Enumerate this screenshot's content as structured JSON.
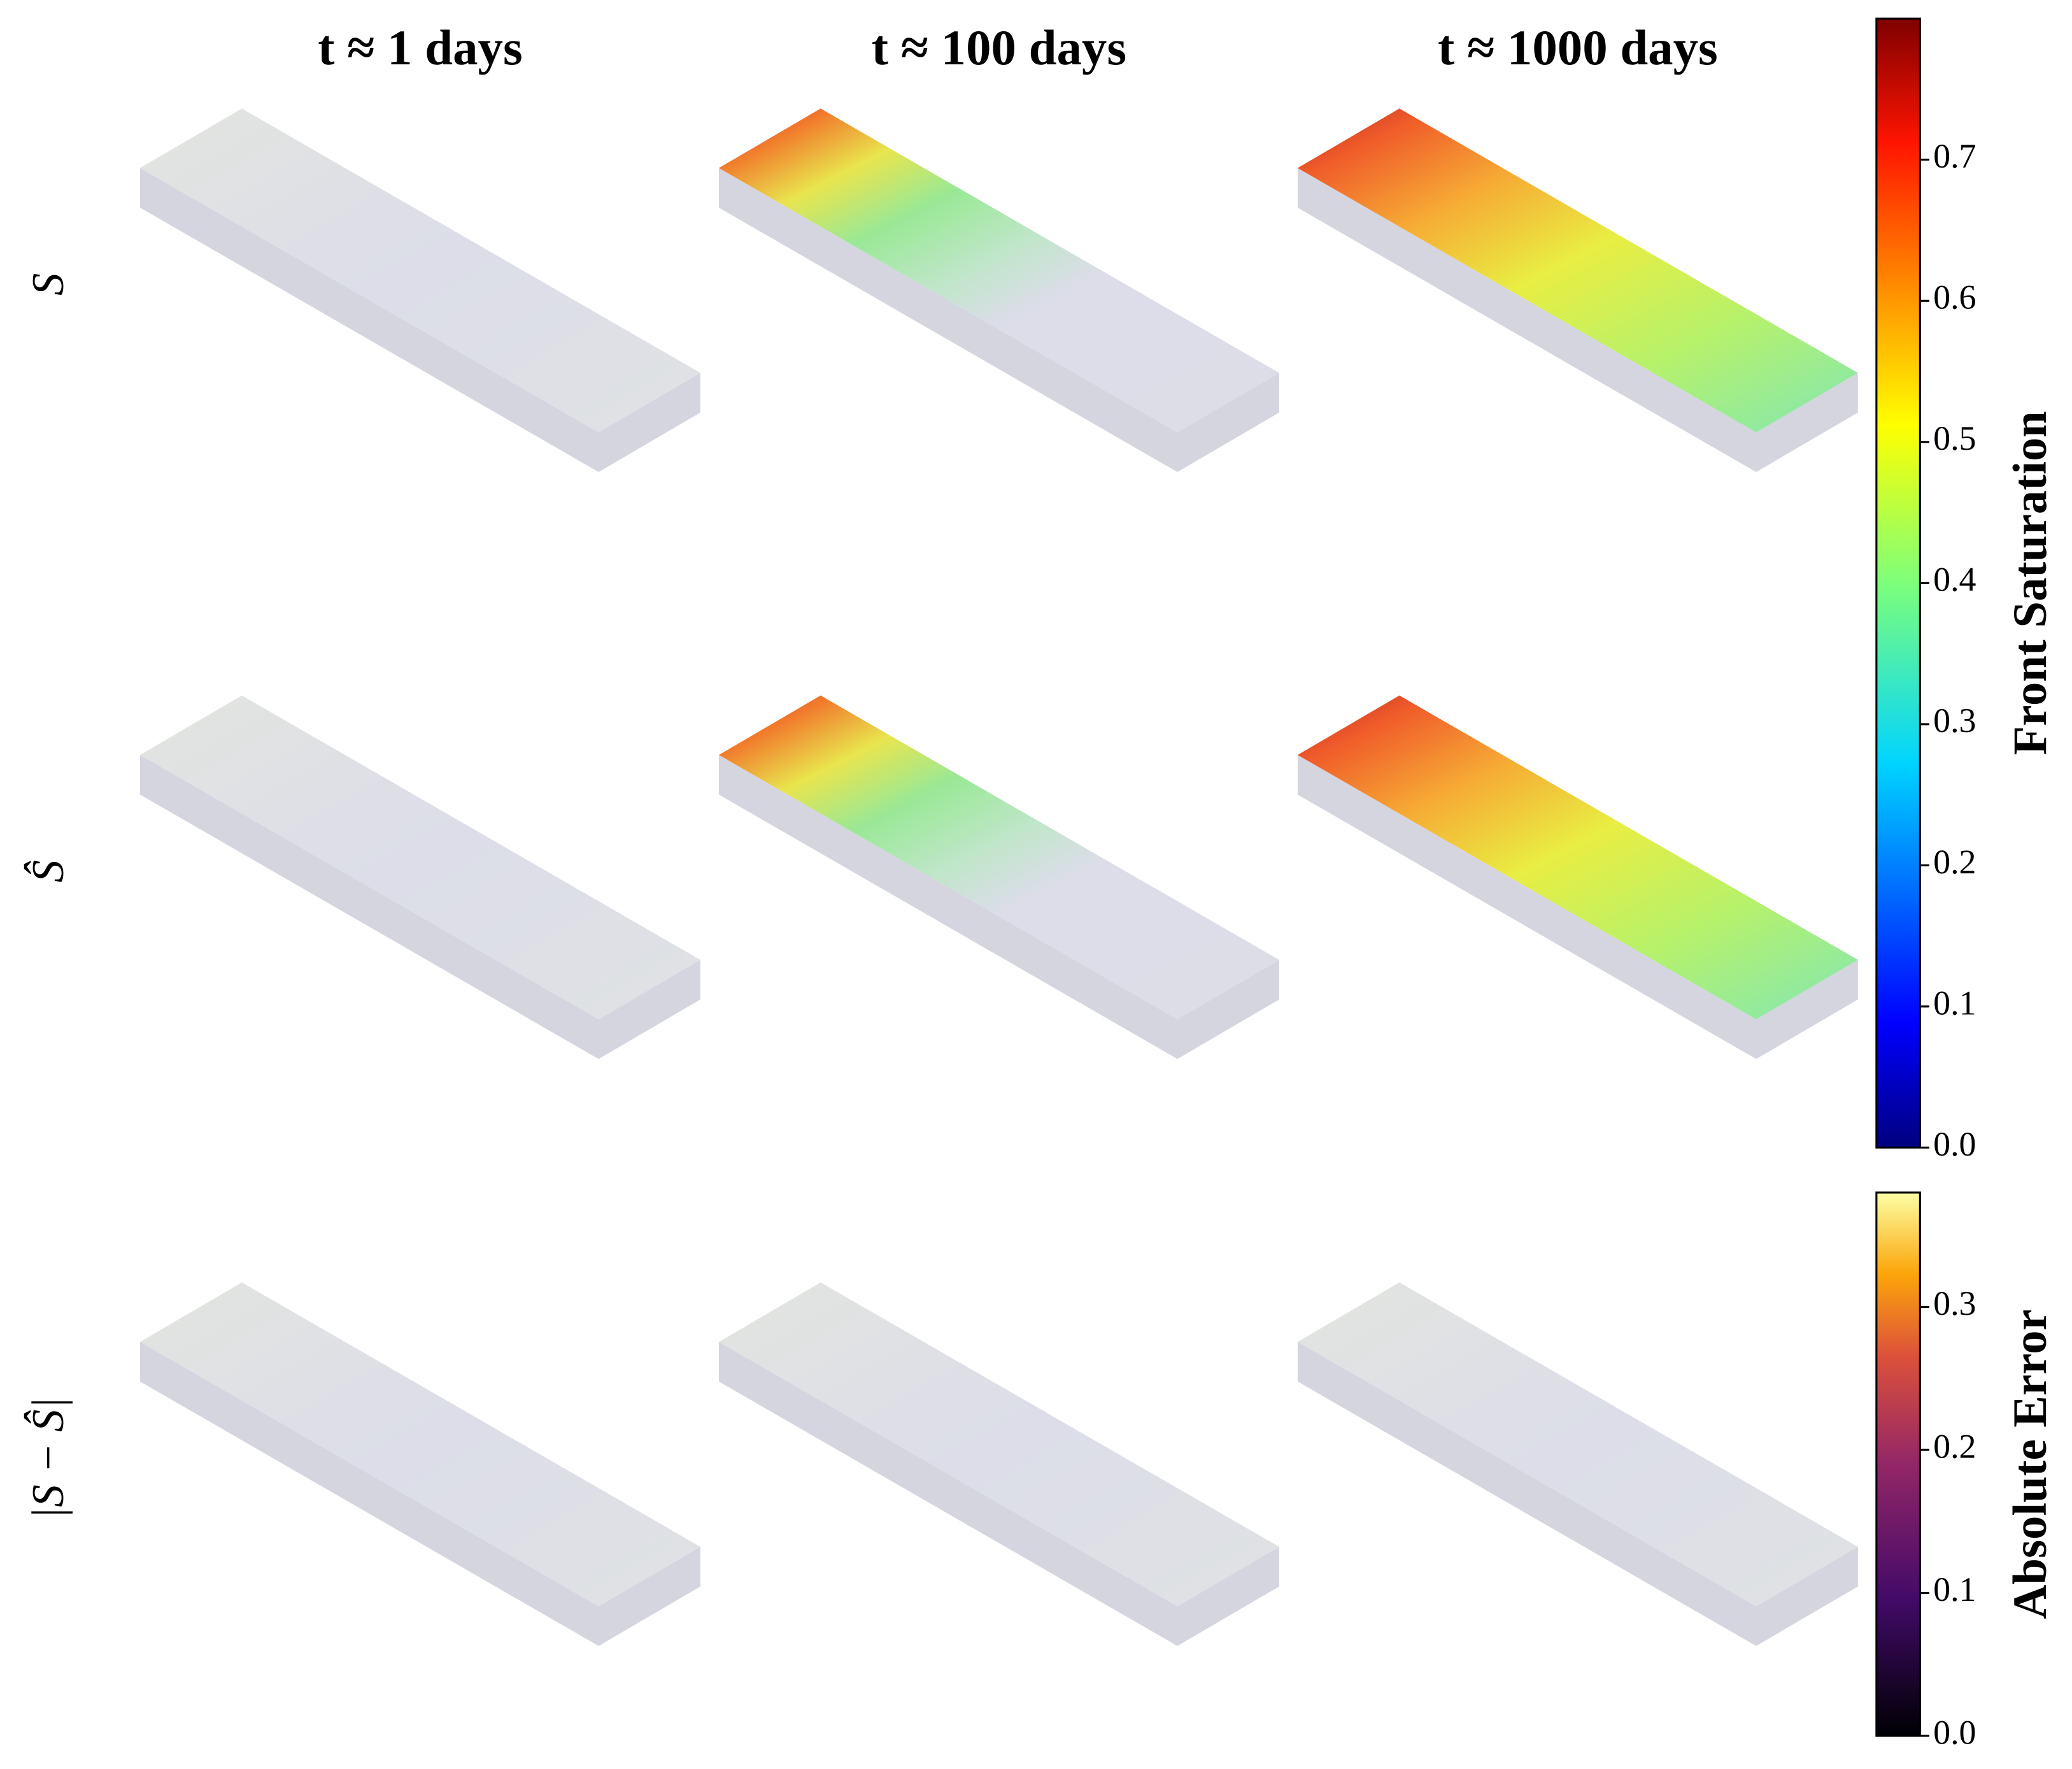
{
  "chart_data": {
    "type": "panel-grid",
    "column_titles": [
      "t ≈ 1 days",
      "t ≈ 100 days",
      "t ≈ 1000 days"
    ],
    "row_labels": [
      "S",
      "Ŝ",
      "|S − Ŝ|"
    ],
    "colorbars": [
      {
        "label": "Front Saturation",
        "ylim": [
          0,
          0.8
        ],
        "yticks": [
          {
            "value": 0,
            "label": "0.0"
          },
          0.1,
          0.2,
          0.3,
          0.4,
          0.5,
          0.6,
          0.7
        ]
      },
      {
        "label": "Absolute Error",
        "ylim": [
          0,
          0.38
        ],
        "yticks": [
          {
            "value": 0,
            "label": "0.0"
          },
          0.1,
          0.2,
          0.3
        ]
      }
    ]
  }
}
